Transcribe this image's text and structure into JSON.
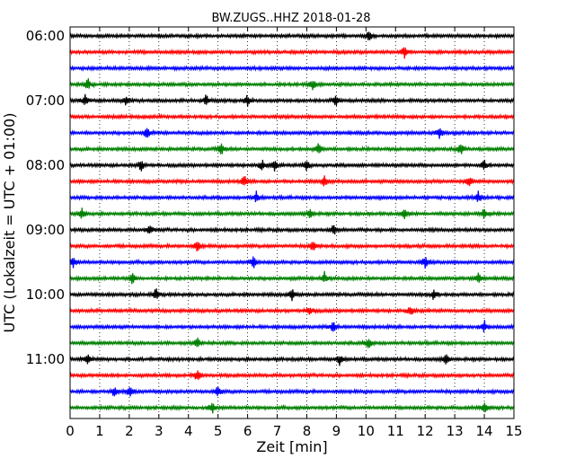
{
  "chart_data": {
    "type": "line",
    "title": "BW.ZUGS..HHZ 2018-01-28",
    "xlabel": "Zeit  [min]",
    "ylabel": "UTC (Lokalzeit = UTC + 01:00)",
    "xlim": [
      0,
      15
    ],
    "x_ticks": [
      "0",
      "1",
      "2",
      "3",
      "4",
      "5",
      "6",
      "7",
      "8",
      "9",
      "10",
      "11",
      "12",
      "13",
      "14",
      "15"
    ],
    "y_tick_labels": [
      "06:00",
      "07:00",
      "08:00",
      "09:00",
      "10:00",
      "11:00"
    ],
    "grid": "vertical dotted at each minute",
    "trace_interval_min": 15,
    "color_cycle": [
      "#000000",
      "#ff0000",
      "#0000ff",
      "#008000"
    ],
    "traces": [
      {
        "start": "06:00",
        "color": "#000000",
        "events_min": [
          10.1
        ]
      },
      {
        "start": "06:15",
        "color": "#ff0000",
        "events_min": [
          11.3
        ]
      },
      {
        "start": "06:30",
        "color": "#0000ff",
        "events_min": []
      },
      {
        "start": "06:45",
        "color": "#008000",
        "events_min": [
          0.6,
          8.2
        ]
      },
      {
        "start": "07:00",
        "color": "#000000",
        "events_min": [
          0.5,
          1.9,
          4.6,
          6.0,
          9.0
        ]
      },
      {
        "start": "07:15",
        "color": "#ff0000",
        "events_min": []
      },
      {
        "start": "07:30",
        "color": "#0000ff",
        "events_min": [
          2.6,
          12.5
        ]
      },
      {
        "start": "07:45",
        "color": "#008000",
        "events_min": [
          5.1,
          8.4,
          13.2
        ]
      },
      {
        "start": "08:00",
        "color": "#000000",
        "events_min": [
          2.4,
          6.5,
          6.9,
          8.0,
          14.0
        ]
      },
      {
        "start": "08:15",
        "color": "#ff0000",
        "events_min": [
          5.9,
          8.6,
          13.5
        ]
      },
      {
        "start": "08:30",
        "color": "#0000ff",
        "events_min": [
          6.3,
          13.8
        ]
      },
      {
        "start": "08:45",
        "color": "#008000",
        "events_min": [
          0.4,
          8.1,
          11.3,
          14.0
        ]
      },
      {
        "start": "09:00",
        "color": "#000000",
        "events_min": [
          2.7,
          8.9
        ]
      },
      {
        "start": "09:15",
        "color": "#ff0000",
        "events_min": [
          4.3,
          8.2
        ]
      },
      {
        "start": "09:30",
        "color": "#0000ff",
        "events_min": [
          0.1,
          6.2,
          12.0
        ]
      },
      {
        "start": "09:45",
        "color": "#008000",
        "events_min": [
          2.1,
          8.6,
          13.8
        ]
      },
      {
        "start": "10:00",
        "color": "#000000",
        "events_min": [
          2.9,
          7.5,
          12.3
        ]
      },
      {
        "start": "10:15",
        "color": "#ff0000",
        "events_min": [
          8.1,
          11.5
        ]
      },
      {
        "start": "10:30",
        "color": "#0000ff",
        "events_min": [
          8.9,
          14.0
        ]
      },
      {
        "start": "10:45",
        "color": "#008000",
        "events_min": [
          4.3,
          10.1
        ]
      },
      {
        "start": "11:00",
        "color": "#000000",
        "events_min": [
          0.6,
          9.1,
          12.7
        ]
      },
      {
        "start": "11:15",
        "color": "#ff0000",
        "events_min": [
          4.3
        ]
      },
      {
        "start": "11:30",
        "color": "#0000ff",
        "events_min": [
          1.5,
          2.0,
          5.0
        ]
      },
      {
        "start": "11:45",
        "color": "#008000",
        "events_min": [
          4.8,
          14.0
        ]
      }
    ]
  }
}
